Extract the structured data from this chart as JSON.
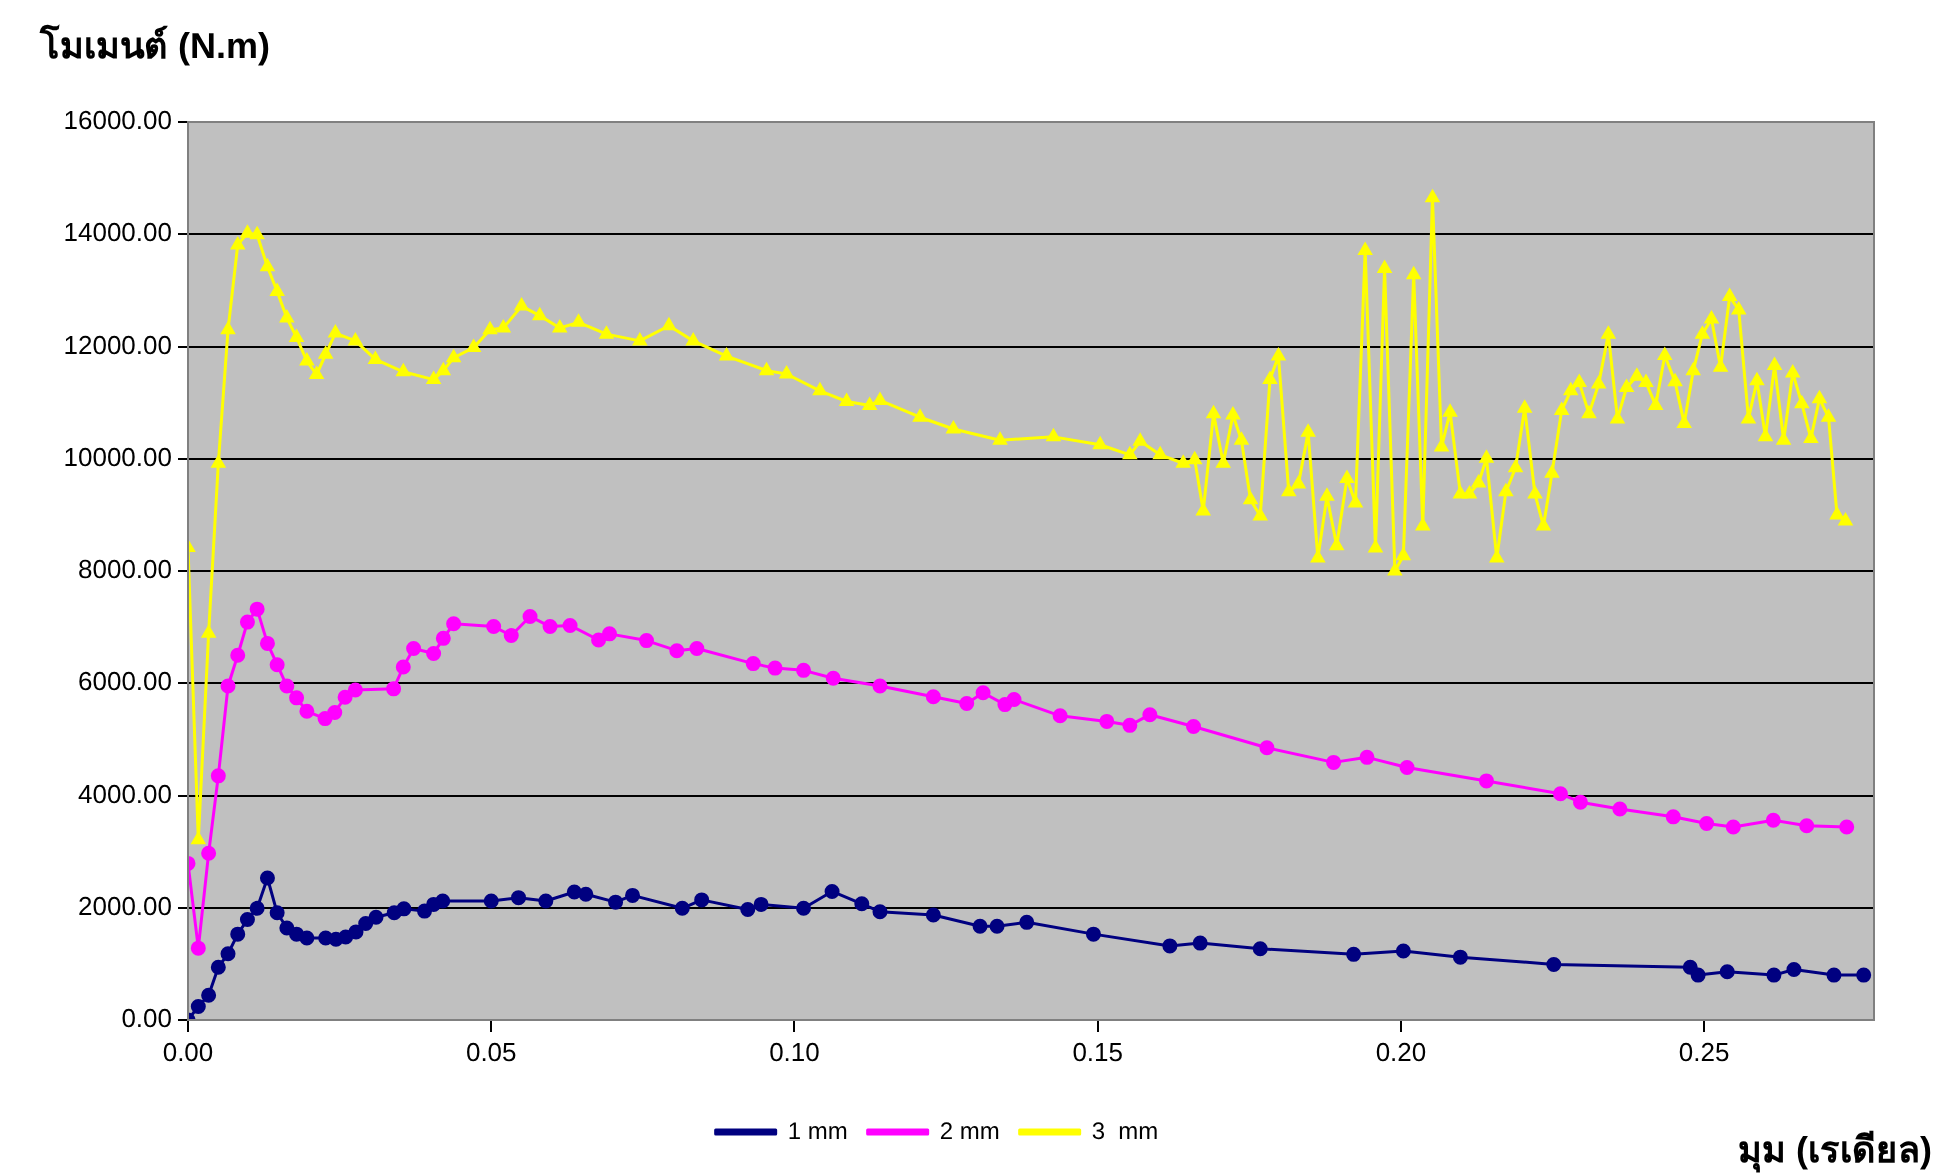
{
  "chart_data": {
    "type": "line",
    "ylabel": "โมเมนต์ (N.m)",
    "xlabel": "มุม (เรเดียล)",
    "xlim": [
      0,
      0.278
    ],
    "ylim": [
      0,
      16000
    ],
    "xticks": [
      {
        "value": 0,
        "label": "0.00"
      },
      {
        "value": 0.05,
        "label": "0.05"
      },
      {
        "value": 0.1,
        "label": "0.10"
      },
      {
        "value": 0.15,
        "label": "0.15"
      },
      {
        "value": 0.2,
        "label": "0.20"
      },
      {
        "value": 0.25,
        "label": "0.25"
      }
    ],
    "yticks": [
      {
        "value": 0,
        "label": "0.00"
      },
      {
        "value": 2000,
        "label": "2000.00"
      },
      {
        "value": 4000,
        "label": "4000.00"
      },
      {
        "value": 6000,
        "label": "6000.00"
      },
      {
        "value": 8000,
        "label": "8000.00"
      },
      {
        "value": 10000,
        "label": "10000.00"
      },
      {
        "value": 12000,
        "label": "12000.00"
      },
      {
        "value": 14000,
        "label": "14000.00"
      },
      {
        "value": 16000,
        "label": "16000.00"
      }
    ],
    "grid": "y",
    "legend": "bottom",
    "line_style": "solid",
    "series": [
      {
        "name": "1 mm",
        "color": "#000080",
        "marker": "circle",
        "x": [
          0,
          0.0017,
          0.0034,
          0.005,
          0.0066,
          0.0082,
          0.0098,
          0.0114,
          0.0131,
          0.0147,
          0.0163,
          0.0179,
          0.0196,
          0.0227,
          0.0244,
          0.026,
          0.0277,
          0.0293,
          0.031,
          0.034,
          0.0356,
          0.039,
          0.0405,
          0.042,
          0.05,
          0.0545,
          0.059,
          0.0637,
          0.0656,
          0.0705,
          0.0733,
          0.0815,
          0.0847,
          0.0923,
          0.0945,
          0.1015,
          0.1062,
          0.1111,
          0.1141,
          0.1229,
          0.1306,
          0.1334,
          0.1383,
          0.1493,
          0.1619,
          0.1669,
          0.1768,
          0.1922,
          0.2004,
          0.2098,
          0.2252,
          0.2477,
          0.249,
          0.2538,
          0.2615,
          0.2648,
          0.2714,
          0.2763
        ],
        "values": [
          0,
          240,
          440,
          940,
          1180,
          1530,
          1790,
          1990,
          2530,
          1910,
          1640,
          1530,
          1460,
          1460,
          1440,
          1480,
          1570,
          1720,
          1830,
          1910,
          1980,
          1940,
          2060,
          2120,
          2120,
          2180,
          2120,
          2280,
          2240,
          2100,
          2220,
          1990,
          2140,
          1970,
          2060,
          1990,
          2290,
          2070,
          1930,
          1870,
          1670,
          1670,
          1740,
          1530,
          1320,
          1370,
          1270,
          1170,
          1230,
          1120,
          990,
          940,
          800,
          860,
          800,
          900,
          800,
          800
        ]
      },
      {
        "name": "2 mm",
        "color": "#ff00ff",
        "marker": "circle",
        "x": [
          0,
          0.0017,
          0.0034,
          0.005,
          0.0066,
          0.0082,
          0.0098,
          0.0114,
          0.0131,
          0.0147,
          0.0163,
          0.0179,
          0.0196,
          0.0226,
          0.0242,
          0.0259,
          0.0276,
          0.0339,
          0.0355,
          0.0372,
          0.0405,
          0.0421,
          0.0438,
          0.0504,
          0.0533,
          0.0564,
          0.0597,
          0.063,
          0.0677,
          0.0695,
          0.0756,
          0.0806,
          0.0839,
          0.0932,
          0.0968,
          0.1015,
          0.1064,
          0.1141,
          0.1229,
          0.1284,
          0.1311,
          0.1347,
          0.1362,
          0.1438,
          0.1515,
          0.1553,
          0.1586,
          0.1658,
          0.1779,
          0.1889,
          0.1944,
          0.201,
          0.2141,
          0.2263,
          0.2296,
          0.2361,
          0.2449,
          0.2504,
          0.2548,
          0.2614,
          0.2669,
          0.2735
        ],
        "values": [
          2790,
          1280,
          2970,
          4350,
          5950,
          6500,
          7090,
          7320,
          6710,
          6330,
          5950,
          5740,
          5500,
          5370,
          5480,
          5750,
          5880,
          5900,
          6290,
          6620,
          6530,
          6800,
          7060,
          7010,
          6850,
          7190,
          7010,
          7030,
          6770,
          6880,
          6760,
          6580,
          6620,
          6350,
          6270,
          6230,
          6090,
          5950,
          5760,
          5640,
          5830,
          5620,
          5710,
          5420,
          5320,
          5250,
          5440,
          5230,
          4850,
          4590,
          4680,
          4500,
          4260,
          4030,
          3880,
          3760,
          3620,
          3500,
          3440,
          3560,
          3460,
          3440
        ]
      },
      {
        "name": "3  mm",
        "color": "#ffff00",
        "marker": "triangle",
        "x": [
          0,
          0.0017,
          0.0034,
          0.005,
          0.0066,
          0.0082,
          0.0098,
          0.0114,
          0.0131,
          0.0147,
          0.0163,
          0.0179,
          0.0196,
          0.0212,
          0.0227,
          0.0243,
          0.0276,
          0.0309,
          0.0355,
          0.0405,
          0.0421,
          0.0438,
          0.0471,
          0.0498,
          0.052,
          0.055,
          0.058,
          0.0613,
          0.0644,
          0.069,
          0.0745,
          0.0793,
          0.0833,
          0.0888,
          0.0954,
          0.0987,
          0.1042,
          0.1086,
          0.1124,
          0.1141,
          0.1207,
          0.1262,
          0.1339,
          0.1427,
          0.1504,
          0.1553,
          0.157,
          0.1603,
          0.1641,
          0.166,
          0.1674,
          0.1691,
          0.1707,
          0.1723,
          0.1737,
          0.1752,
          0.1768,
          0.1784,
          0.1798,
          0.1815,
          0.1831,
          0.1847,
          0.1863,
          0.1878,
          0.1894,
          0.1911,
          0.1925,
          0.1941,
          0.1958,
          0.1973,
          0.199,
          0.2004,
          0.2021,
          0.2036,
          0.2052,
          0.2067,
          0.2081,
          0.2098,
          0.2113,
          0.2128,
          0.2141,
          0.2158,
          0.2173,
          0.2189,
          0.2204,
          0.2221,
          0.2235,
          0.2249,
          0.2265,
          0.228,
          0.2294,
          0.231,
          0.2326,
          0.2342,
          0.2357,
          0.2372,
          0.2389,
          0.2404,
          0.242,
          0.2435,
          0.2452,
          0.2467,
          0.2482,
          0.2497,
          0.2512,
          0.2527,
          0.2542,
          0.2557,
          0.2573,
          0.2587,
          0.2601,
          0.2616,
          0.2631,
          0.2646,
          0.2661,
          0.2676,
          0.269,
          0.2705,
          0.2719,
          0.2733
        ],
        "values": [
          8420,
          3210,
          6890,
          9920,
          12300,
          13810,
          14020,
          13990,
          13420,
          12980,
          12510,
          12160,
          11740,
          11500,
          11860,
          12240,
          12100,
          11770,
          11550,
          11410,
          11570,
          11800,
          11980,
          12300,
          12330,
          12720,
          12550,
          12330,
          12430,
          12220,
          12100,
          12370,
          12100,
          11830,
          11570,
          11510,
          11210,
          11020,
          10950,
          11040,
          10740,
          10530,
          10330,
          10390,
          10250,
          10070,
          10310,
          10070,
          9920,
          9980,
          9070,
          10800,
          9920,
          10780,
          10330,
          9270,
          8980,
          11410,
          11830,
          9410,
          9550,
          10470,
          8230,
          9330,
          8450,
          9650,
          9210,
          13710,
          8410,
          13390,
          8000,
          8270,
          13280,
          8800,
          14650,
          10210,
          10830,
          9370,
          9370,
          9570,
          10010,
          8230,
          9410,
          9840,
          10900,
          9370,
          8800,
          9740,
          10860,
          11210,
          11360,
          10800,
          11330,
          12220,
          10710,
          11270,
          11470,
          11360,
          10950,
          11840,
          11370,
          10630,
          11570,
          12220,
          12490,
          11630,
          12890,
          12650,
          10710,
          11390,
          10390,
          11660,
          10330,
          11530,
          10980,
          10360,
          11070,
          10740,
          9000,
          8890
        ]
      }
    ]
  }
}
